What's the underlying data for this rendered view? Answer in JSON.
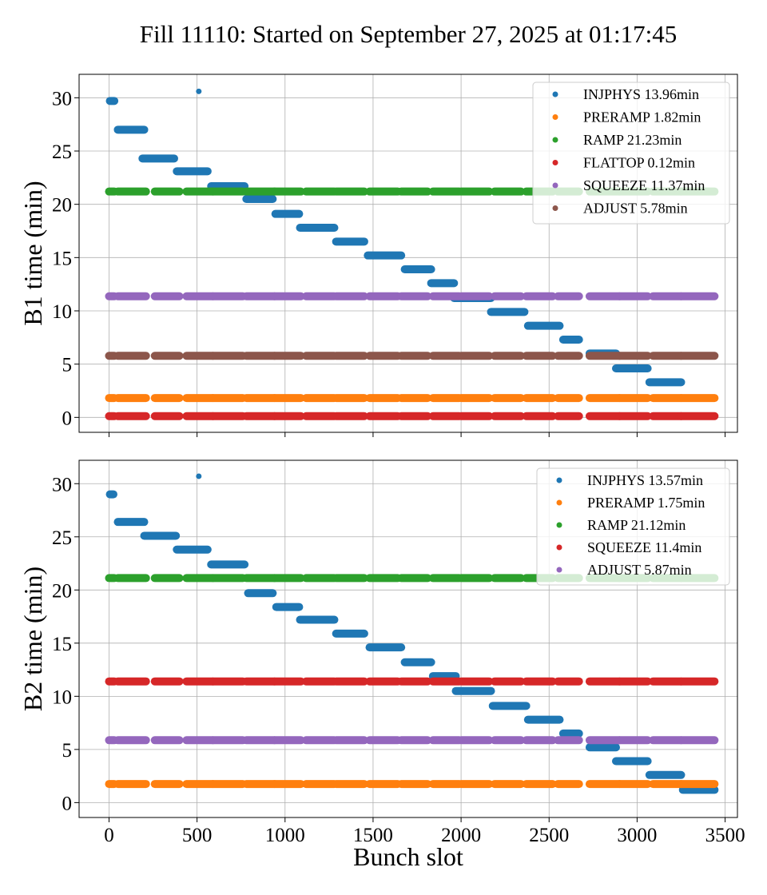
{
  "figure": {
    "title": "Fill 11110: Started on September 27, 2025 at 01:17:45"
  },
  "colors": {
    "INJPHYS": "#1f77b4",
    "PRERAMP": "#ff7f0e",
    "RAMP": "#2ca02c",
    "FLATTOP": "#d62728",
    "SQUEEZE_B1": "#9467bd",
    "ADJUST_B1": "#8c564b",
    "SQUEEZE_B2": "#d62728",
    "ADJUST_B2": "#9467bd",
    "grid": "#b0b0b0"
  },
  "chart_data": [
    {
      "type": "scatter",
      "panel": "B1",
      "xlabel": "",
      "ylabel": "B1 time (min)",
      "xlim": [
        -170,
        3570
      ],
      "ylim": [
        -1.4,
        32.2
      ],
      "xticks": [
        0,
        500,
        1000,
        1500,
        2000,
        2500,
        3000,
        3500
      ],
      "yticks": [
        0,
        5,
        10,
        15,
        20,
        25,
        30
      ],
      "grid": true,
      "legend_position": "top-right",
      "occupied_ranges": [
        [
          0,
          30
        ],
        [
          50,
          210
        ],
        [
          260,
          400
        ],
        [
          440,
          590
        ],
        [
          590,
          760
        ],
        [
          780,
          940
        ],
        [
          940,
          1090
        ],
        [
          1120,
          1280
        ],
        [
          1290,
          1450
        ],
        [
          1480,
          1640
        ],
        [
          1660,
          1810
        ],
        [
          1840,
          1990
        ],
        [
          2000,
          2160
        ],
        [
          2190,
          2340
        ],
        [
          2370,
          2520
        ],
        [
          2550,
          2670
        ],
        [
          2730,
          2900
        ],
        [
          2900,
          3060
        ],
        [
          3090,
          3250
        ],
        [
          3250,
          3440
        ]
      ],
      "series": [
        {
          "name": "INJPHYS 13.96min",
          "color": "#1f77b4",
          "segments": [
            [
              5,
              30,
              29.7
            ],
            [
              50,
              200,
              27.0
            ],
            [
              190,
              370,
              24.3
            ],
            [
              385,
              560,
              23.1
            ],
            [
              580,
              770,
              21.7
            ],
            [
              780,
              930,
              20.5
            ],
            [
              945,
              1080,
              19.1
            ],
            [
              1085,
              1280,
              17.8
            ],
            [
              1290,
              1450,
              16.5
            ],
            [
              1470,
              1660,
              15.2
            ],
            [
              1680,
              1830,
              13.9
            ],
            [
              1830,
              1960,
              12.6
            ],
            [
              1960,
              2170,
              11.2
            ],
            [
              2170,
              2360,
              9.9
            ],
            [
              2380,
              2560,
              8.6
            ],
            [
              2580,
              2670,
              7.3
            ],
            [
              2730,
              2880,
              6.0
            ],
            [
              2880,
              3060,
              4.6
            ],
            [
              3070,
              3250,
              3.3
            ]
          ],
          "points": [
            [
              510,
              30.6
            ]
          ]
        },
        {
          "name": "PRERAMP 1.82min",
          "color": "#ff7f0e",
          "value": 1.82
        },
        {
          "name": "RAMP 21.23min",
          "color": "#2ca02c",
          "value": 21.2
        },
        {
          "name": "FLATTOP 0.12min",
          "color": "#d62728",
          "value": 0.12
        },
        {
          "name": "SQUEEZE 11.37min",
          "color": "#9467bd",
          "value": 11.37
        },
        {
          "name": "ADJUST 5.78min",
          "color": "#8c564b",
          "value": 5.78
        }
      ]
    },
    {
      "type": "scatter",
      "panel": "B2",
      "xlabel": "Bunch slot",
      "ylabel": "B2 time (min)",
      "xlim": [
        -170,
        3570
      ],
      "ylim": [
        -1.4,
        32.2
      ],
      "xticks": [
        0,
        500,
        1000,
        1500,
        2000,
        2500,
        3000,
        3500
      ],
      "xticklabels": [
        "0",
        "500",
        "1000",
        "1500",
        "2000",
        "2500",
        "3000",
        "3500"
      ],
      "yticks": [
        0,
        5,
        10,
        15,
        20,
        25,
        30
      ],
      "grid": true,
      "legend_position": "top-right",
      "occupied_ranges": [
        [
          0,
          30
        ],
        [
          50,
          210
        ],
        [
          260,
          400
        ],
        [
          440,
          590
        ],
        [
          590,
          760
        ],
        [
          780,
          940
        ],
        [
          940,
          1090
        ],
        [
          1120,
          1280
        ],
        [
          1290,
          1450
        ],
        [
          1480,
          1640
        ],
        [
          1660,
          1810
        ],
        [
          1840,
          1990
        ],
        [
          2000,
          2160
        ],
        [
          2190,
          2340
        ],
        [
          2370,
          2520
        ],
        [
          2550,
          2670
        ],
        [
          2730,
          2900
        ],
        [
          2900,
          3060
        ],
        [
          3090,
          3250
        ],
        [
          3250,
          3440
        ]
      ],
      "series": [
        {
          "name": "INJPHYS 13.57min",
          "color": "#1f77b4",
          "segments": [
            [
              5,
              25,
              29.0
            ],
            [
              50,
              200,
              26.4
            ],
            [
              200,
              380,
              25.1
            ],
            [
              385,
              560,
              23.8
            ],
            [
              580,
              770,
              22.4
            ],
            [
              790,
              930,
              19.7
            ],
            [
              950,
              1080,
              18.4
            ],
            [
              1085,
              1280,
              17.2
            ],
            [
              1290,
              1450,
              15.9
            ],
            [
              1480,
              1660,
              14.6
            ],
            [
              1680,
              1830,
              13.2
            ],
            [
              1840,
              1970,
              11.9
            ],
            [
              1970,
              2170,
              10.5
            ],
            [
              2180,
              2370,
              9.1
            ],
            [
              2380,
              2560,
              7.8
            ],
            [
              2580,
              2670,
              6.5
            ],
            [
              2730,
              2880,
              5.2
            ],
            [
              2880,
              3060,
              3.9
            ],
            [
              3070,
              3250,
              2.6
            ],
            [
              3260,
              3440,
              1.2
            ]
          ],
          "points": [
            [
              510,
              30.7
            ]
          ]
        },
        {
          "name": "PRERAMP 1.75min",
          "color": "#ff7f0e",
          "value": 1.75
        },
        {
          "name": "RAMP 21.12min",
          "color": "#2ca02c",
          "value": 21.12
        },
        {
          "name": "SQUEEZE 11.4min",
          "color": "#d62728",
          "value": 11.4
        },
        {
          "name": "ADJUST 5.87min",
          "color": "#9467bd",
          "value": 5.87
        }
      ]
    }
  ]
}
